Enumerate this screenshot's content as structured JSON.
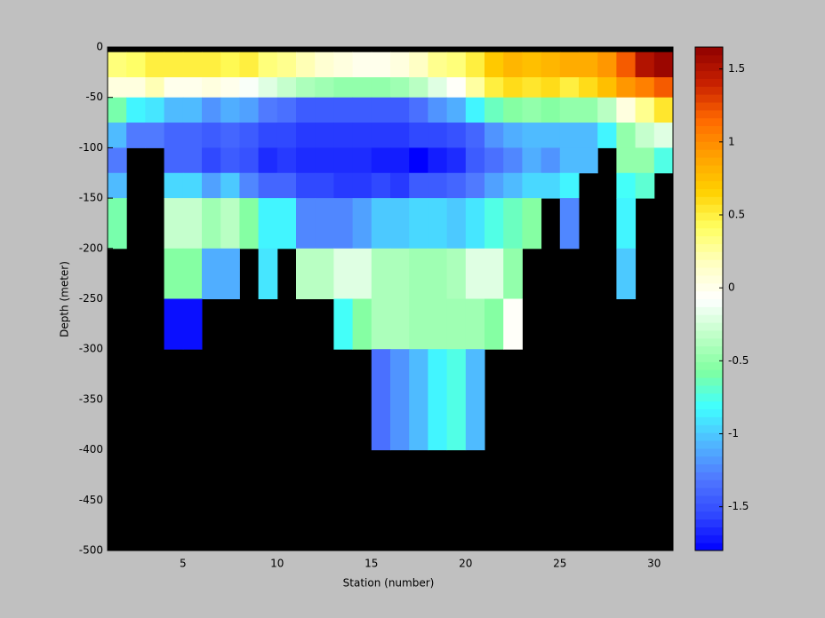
{
  "chart_data": {
    "type": "heatmap",
    "xlabel": "Station (number)",
    "ylabel": "Depth (meter)",
    "x_edges": [
      1,
      2,
      3,
      4,
      5,
      6,
      7,
      8,
      9,
      10,
      11,
      12,
      13,
      14,
      15,
      16,
      17,
      18,
      19,
      20,
      21,
      22,
      23,
      24,
      25,
      26,
      27,
      28,
      29,
      30,
      31
    ],
    "y_edges": [
      -5,
      -30,
      -50,
      -75,
      -100,
      -125,
      -150,
      -200,
      -250,
      -300,
      -400
    ],
    "values": [
      [
        0.35,
        0.4,
        0.5,
        0.5,
        0.5,
        0.5,
        0.45,
        0.5,
        0.35,
        0.3,
        0.2,
        0.1,
        0.05,
        0,
        0,
        0.05,
        0.15,
        0.3,
        0.35,
        0.5,
        0.7,
        0.8,
        0.75,
        0.8,
        0.85,
        0.85,
        0.95,
        1.2,
        1.5,
        1.6
      ],
      [
        0.05,
        0.05,
        0.2,
        0,
        0,
        0.05,
        0,
        -0.1,
        -0.2,
        -0.3,
        -0.4,
        -0.45,
        -0.5,
        -0.5,
        -0.5,
        -0.45,
        -0.35,
        -0.2,
        -0.05,
        0.25,
        0.5,
        0.6,
        0.55,
        0.6,
        0.5,
        0.6,
        0.75,
        0.95,
        1.05,
        1.2
      ],
      [
        -0.6,
        -0.85,
        -0.9,
        -1.05,
        -1.05,
        -1.2,
        -1.1,
        -1.15,
        -1.3,
        -1.35,
        -1.45,
        -1.45,
        -1.45,
        -1.45,
        -1.45,
        -1.45,
        -1.35,
        -1.2,
        -1.1,
        -0.85,
        -0.65,
        -0.55,
        -0.5,
        -0.55,
        -0.5,
        -0.5,
        -0.35,
        0.05,
        0.3,
        0.55
      ],
      [
        -1.05,
        -1.3,
        -1.3,
        -1.4,
        -1.4,
        -1.45,
        -1.4,
        -1.45,
        -1.55,
        -1.55,
        -1.6,
        -1.6,
        -1.6,
        -1.6,
        -1.6,
        -1.6,
        -1.55,
        -1.55,
        -1.5,
        -1.4,
        -1.2,
        -1.1,
        -1.05,
        -1.05,
        -1.05,
        -1.05,
        -0.85,
        -0.5,
        -0.3,
        -0.2
      ],
      [
        -1.3,
        null,
        null,
        -1.4,
        -1.4,
        -1.55,
        -1.45,
        -1.5,
        -1.65,
        -1.6,
        -1.65,
        -1.65,
        -1.65,
        -1.65,
        -1.7,
        -1.7,
        -1.8,
        -1.7,
        -1.65,
        -1.45,
        -1.35,
        -1.25,
        -1.1,
        -1.2,
        -1.05,
        -1.05,
        null,
        -0.5,
        -0.5,
        -0.75
      ],
      [
        -1.05,
        null,
        null,
        -0.95,
        -0.95,
        -1.15,
        -1.0,
        -1.25,
        -1.4,
        -1.4,
        -1.55,
        -1.55,
        -1.6,
        -1.6,
        -1.55,
        -1.6,
        -1.45,
        -1.45,
        -1.4,
        -1.3,
        -1.15,
        -1.05,
        -0.95,
        -0.95,
        -0.85,
        null,
        null,
        -0.8,
        -0.7,
        null
      ],
      [
        -0.6,
        null,
        null,
        -0.3,
        -0.3,
        -0.45,
        -0.35,
        -0.55,
        -0.85,
        -0.85,
        -1.25,
        -1.25,
        -1.25,
        -1.15,
        -1.0,
        -1.0,
        -0.95,
        -0.95,
        -1.0,
        -0.9,
        -0.75,
        -0.65,
        -0.55,
        null,
        -1.25,
        null,
        null,
        -0.85,
        null,
        null
      ],
      [
        null,
        null,
        null,
        -0.55,
        -0.55,
        -1.1,
        -1.1,
        null,
        -0.9,
        null,
        -0.35,
        -0.35,
        -0.2,
        -0.2,
        -0.4,
        -0.4,
        -0.45,
        -0.45,
        -0.4,
        -0.2,
        -0.2,
        -0.5,
        null,
        null,
        null,
        null,
        null,
        -1.0,
        null,
        null
      ],
      [
        null,
        null,
        null,
        -1.75,
        -1.75,
        null,
        null,
        null,
        null,
        null,
        null,
        null,
        -0.8,
        -0.55,
        -0.4,
        -0.4,
        -0.45,
        -0.45,
        -0.45,
        -0.45,
        -0.55,
        -0.05,
        null,
        null,
        null,
        null,
        null,
        null,
        null,
        null
      ],
      [
        null,
        null,
        null,
        null,
        null,
        null,
        null,
        null,
        null,
        null,
        null,
        null,
        null,
        null,
        -1.35,
        -1.2,
        -1.05,
        -0.85,
        -0.75,
        -1.05,
        null,
        null,
        null,
        null,
        null,
        null,
        null,
        null,
        null,
        null
      ]
    ],
    "xlim": [
      1,
      31
    ],
    "xticks": [
      5,
      10,
      15,
      20,
      25,
      30
    ],
    "ylim": [
      -500,
      0
    ],
    "yticks": [
      -500,
      -450,
      -400,
      -350,
      -300,
      -250,
      -200,
      -150,
      -100,
      -50,
      0
    ],
    "clim": [
      -1.8,
      1.65
    ],
    "cticks": [
      -1.5,
      -1,
      -0.5,
      0,
      0.5,
      1,
      1.5
    ],
    "colormap": [
      "#0000ff",
      "#3048ff",
      "#5078ff",
      "#50b8ff",
      "#40ffff",
      "#80ffa0",
      "#c0ffc8",
      "#ffffff",
      "#ffffc0",
      "#ffff60",
      "#ffd000",
      "#ffa000",
      "#ff6800",
      "#c82000",
      "#900000"
    ],
    "missing_color": "#000000"
  }
}
